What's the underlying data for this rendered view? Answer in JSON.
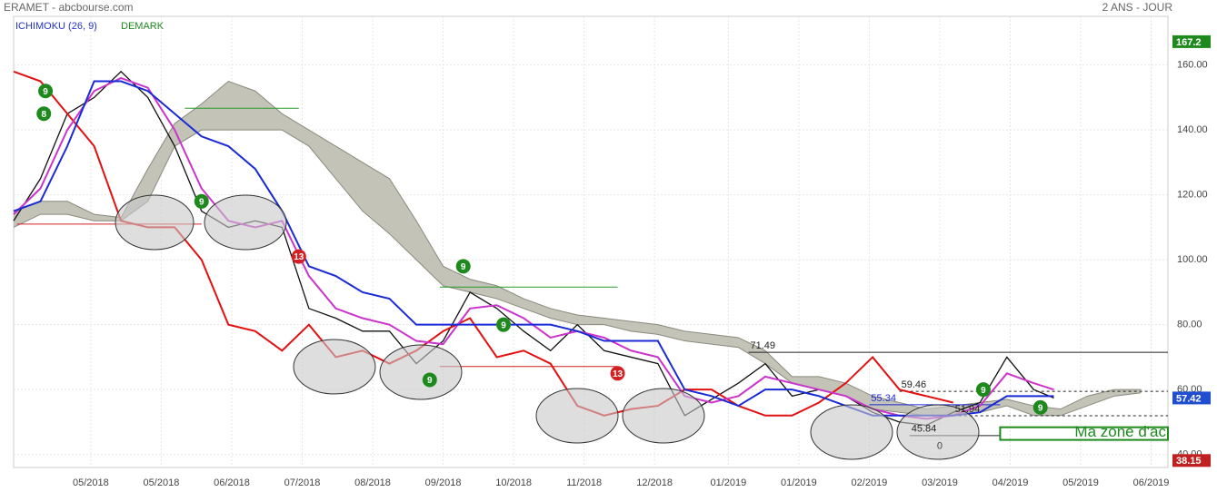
{
  "chart_data": {
    "type": "ichimoku",
    "title": "ERAMET - abcbourse.com",
    "subtitle": "2 ANS - JOUR",
    "legend": [
      {
        "text": "ICHIMOKU (26, 9)",
        "color": "#2233cc"
      },
      {
        "text": "DEMARK",
        "color": "#1e8a1e"
      }
    ],
    "xlim": [
      0,
      344
    ],
    "xticks": [
      {
        "value": 23,
        "label": "05/2018"
      },
      {
        "value": 44,
        "label": "05/2018"
      },
      {
        "value": 65,
        "label": "06/2018"
      },
      {
        "value": 86,
        "label": "07/2018"
      },
      {
        "value": 107,
        "label": "08/2018"
      },
      {
        "value": 128,
        "label": "09/2018"
      },
      {
        "value": 149,
        "label": "10/2018"
      },
      {
        "value": 170,
        "label": "11/2018"
      },
      {
        "value": 191,
        "label": "12/2018"
      },
      {
        "value": 213,
        "label": "01/2019"
      },
      {
        "value": 234,
        "label": "01/2019"
      },
      {
        "value": 255,
        "label": "02/2019"
      },
      {
        "value": 276,
        "label": "03/2019"
      },
      {
        "value": 297,
        "label": "04/2019"
      },
      {
        "value": 318,
        "label": "05/2019"
      },
      {
        "value": 339,
        "label": "06/2019"
      }
    ],
    "ylim": [
      36,
      175
    ],
    "yticks": [
      {
        "value": 40,
        "label": "40.00"
      },
      {
        "value": 60,
        "label": "60.00"
      },
      {
        "value": 80,
        "label": "80.00"
      },
      {
        "value": 100,
        "label": "100.00"
      },
      {
        "value": 120,
        "label": "120.00"
      },
      {
        "value": 140,
        "label": "140.00"
      },
      {
        "value": 160,
        "label": "160.00"
      }
    ],
    "grid": true,
    "x": [
      0,
      8,
      16,
      24,
      32,
      40,
      48,
      56,
      64,
      72,
      80,
      88,
      96,
      104,
      112,
      120,
      128,
      136,
      144,
      152,
      160,
      168,
      176,
      184,
      192,
      200,
      208,
      216,
      224,
      232,
      240,
      248,
      256,
      264,
      272,
      280,
      288,
      296,
      304,
      310
    ],
    "series": [
      {
        "color": "#111111",
        "values": [
          112,
          125,
          145,
          150,
          158,
          150,
          135,
          115,
          110,
          112,
          110,
          85,
          82,
          78,
          78,
          68,
          75,
          90,
          85,
          78,
          72,
          80,
          72,
          70,
          68,
          52,
          57,
          62,
          68,
          58,
          60,
          58,
          53,
          50,
          49,
          53,
          56,
          70,
          60,
          57.42
        ]
      },
      {
        "color": "#e21010",
        "values": [
          158,
          155,
          145,
          135,
          112,
          110,
          110,
          100,
          80,
          78,
          72,
          80,
          70,
          72,
          68,
          72,
          78,
          82,
          70,
          72,
          68,
          55,
          52,
          54,
          55,
          60,
          60,
          55,
          52,
          52,
          56,
          62,
          70,
          60,
          58,
          56,
          null,
          null,
          null,
          null
        ]
      },
      {
        "color": "#cc33cc",
        "values": [
          114,
          122,
          140,
          152,
          156,
          153,
          140,
          122,
          112,
          110,
          112,
          95,
          85,
          82,
          80,
          75,
          74,
          85,
          86,
          82,
          76,
          78,
          76,
          72,
          70,
          58,
          56,
          58,
          64,
          62,
          60,
          58,
          54,
          52,
          51,
          52,
          55,
          65,
          62,
          60
        ]
      },
      {
        "color": "#1a2ad6",
        "values": [
          115,
          118,
          135,
          155,
          155,
          152,
          145,
          138,
          135,
          128,
          115,
          98,
          95,
          90,
          88,
          80,
          80,
          80,
          80,
          80,
          80,
          78,
          75,
          75,
          75,
          60,
          58,
          55,
          60,
          60,
          58,
          55,
          52,
          52,
          52,
          52,
          53,
          58,
          58,
          58
        ]
      }
    ],
    "cloud": {
      "color": "#b9b8ac",
      "x": [
        0,
        8,
        16,
        24,
        32,
        40,
        48,
        56,
        64,
        72,
        80,
        88,
        96,
        104,
        112,
        120,
        128,
        136,
        144,
        152,
        160,
        168,
        176,
        184,
        192,
        200,
        208,
        216,
        224,
        232,
        240,
        248,
        256,
        264,
        272,
        280,
        288,
        296,
        304,
        312,
        320,
        328,
        336
      ],
      "upper": [
        115,
        118,
        118,
        114,
        113,
        128,
        142,
        148,
        155,
        152,
        145,
        140,
        135,
        130,
        125,
        112,
        98,
        94,
        92,
        88,
        85,
        83,
        82,
        81,
        80,
        78,
        77,
        76,
        72,
        64,
        64,
        62,
        58,
        56,
        54,
        55,
        56,
        57,
        55,
        54,
        58,
        60,
        60
      ],
      "lower": [
        110,
        114,
        114,
        112,
        112,
        118,
        135,
        140,
        140,
        140,
        140,
        135,
        125,
        115,
        108,
        100,
        92,
        90,
        88,
        85,
        82,
        80,
        80,
        78,
        77,
        75,
        74,
        73,
        68,
        62,
        60,
        58,
        54,
        53,
        52,
        52,
        53,
        55,
        52,
        52,
        55,
        58,
        59
      ]
    },
    "levels": [
      {
        "value": 146.7,
        "x": [
          51,
          85
        ],
        "color": "#2a9a2a"
      },
      {
        "value": 111,
        "x": [
          1,
          56
        ],
        "color": "#d42020"
      },
      {
        "value": 91.6,
        "x": [
          127,
          180
        ],
        "color": "#2a9a2a"
      },
      {
        "value": 67.1,
        "x": [
          127,
          180
        ],
        "color": "#d42020"
      },
      {
        "value": 71.49,
        "x": [
          219,
          344
        ],
        "color": "#222222",
        "labeled": true
      },
      {
        "value": 59.46,
        "x": [
          264,
          344
        ],
        "color": "#222222",
        "dash": true,
        "labeled": true
      },
      {
        "value": 55.34,
        "x": [
          255,
          294
        ],
        "color": "#1a2ad6",
        "labeled": true
      },
      {
        "value": 51.94,
        "x": [
          280,
          344
        ],
        "color": "#222222",
        "dash": true,
        "labeled": true
      },
      {
        "value": 45.84,
        "x": [
          267,
          294
        ],
        "color": "#222222",
        "labeled": true
      }
    ],
    "annotations": [
      {
        "text": "0",
        "x": 276,
        "y": 42.5
      }
    ],
    "zone": {
      "text": "Ma zone d'ac",
      "x": [
        294,
        344
      ],
      "ylim": [
        44.5,
        48.4
      ],
      "color": "#1e8a1e"
    },
    "badges": [
      {
        "text": "9",
        "x": 9.5,
        "y": 152,
        "color": "#1e8a1e"
      },
      {
        "text": "8",
        "x": 9,
        "y": 145,
        "color": "#1e8a1e"
      },
      {
        "text": "9",
        "x": 56,
        "y": 118,
        "color": "#1e8a1e"
      },
      {
        "text": "13",
        "x": 85,
        "y": 101,
        "color": "#d42020"
      },
      {
        "text": "9",
        "x": 134,
        "y": 98,
        "color": "#1e8a1e"
      },
      {
        "text": "9",
        "x": 146,
        "y": 80,
        "color": "#1e8a1e"
      },
      {
        "text": "9",
        "x": 124,
        "y": 63,
        "color": "#1e8a1e"
      },
      {
        "text": "13",
        "x": 180,
        "y": 65,
        "color": "#d42020"
      },
      {
        "text": "9",
        "x": 289,
        "y": 60,
        "color": "#1e8a1e"
      },
      {
        "text": "9",
        "x": 306,
        "y": 54.5,
        "color": "#1e8a1e"
      }
    ],
    "tags": [
      {
        "value": 167.2,
        "color": "#1e8a1e"
      },
      {
        "value": 57.42,
        "color": "#1f4fd0"
      },
      {
        "value": 38.15,
        "color": "#c0201f"
      }
    ]
  }
}
